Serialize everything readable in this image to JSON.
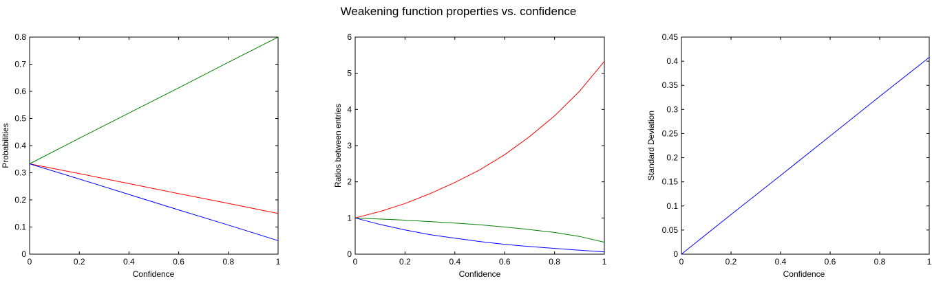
{
  "figure": {
    "title": "Weakening function properties vs. confidence"
  },
  "chart_data": [
    {
      "type": "line",
      "xlabel": "Confidence",
      "ylabel": "Probabilities",
      "xlim": [
        0,
        1
      ],
      "ylim": [
        0,
        0.8
      ],
      "xticks": [
        "0",
        "0.2",
        "0.4",
        "0.6",
        "0.8",
        "1"
      ],
      "yticks": [
        "0",
        "0.1",
        "0.2",
        "0.3",
        "0.4",
        "0.5",
        "0.6",
        "0.7",
        "0.8"
      ],
      "grid": false,
      "series": [
        {
          "color": "#008000",
          "x": [
            0,
            0.2,
            0.4,
            0.6,
            0.8,
            1
          ],
          "y": [
            0.333,
            0.427,
            0.52,
            0.613,
            0.707,
            0.8
          ]
        },
        {
          "color": "#ff0000",
          "x": [
            0,
            0.2,
            0.4,
            0.6,
            0.8,
            1
          ],
          "y": [
            0.333,
            0.297,
            0.26,
            0.223,
            0.187,
            0.15
          ]
        },
        {
          "color": "#0000ff",
          "x": [
            0,
            0.2,
            0.4,
            0.6,
            0.8,
            1
          ],
          "y": [
            0.333,
            0.277,
            0.22,
            0.163,
            0.107,
            0.05
          ]
        }
      ]
    },
    {
      "type": "line",
      "xlabel": "Confidence",
      "ylabel": "Ratios between entries",
      "xlim": [
        0,
        1
      ],
      "ylim": [
        0,
        6
      ],
      "xticks": [
        "0",
        "0.2",
        "0.4",
        "0.6",
        "0.8",
        "1"
      ],
      "yticks": [
        "0",
        "1",
        "2",
        "3",
        "4",
        "5",
        "6"
      ],
      "grid": false,
      "series": [
        {
          "color": "#ff0000",
          "x": [
            0,
            0.1,
            0.2,
            0.3,
            0.4,
            0.5,
            0.6,
            0.7,
            0.8,
            0.9,
            1
          ],
          "y": [
            1.0,
            1.18,
            1.4,
            1.67,
            1.98,
            2.33,
            2.75,
            3.25,
            3.82,
            4.5,
            5.33
          ]
        },
        {
          "color": "#008000",
          "x": [
            0,
            0.1,
            0.2,
            0.3,
            0.4,
            0.5,
            0.6,
            0.7,
            0.8,
            0.9,
            1
          ],
          "y": [
            1.0,
            0.97,
            0.94,
            0.9,
            0.86,
            0.81,
            0.75,
            0.68,
            0.6,
            0.49,
            0.33
          ]
        },
        {
          "color": "#0000ff",
          "x": [
            0,
            0.1,
            0.2,
            0.3,
            0.4,
            0.5,
            0.6,
            0.7,
            0.8,
            0.9,
            1
          ],
          "y": [
            1.0,
            0.82,
            0.67,
            0.54,
            0.44,
            0.35,
            0.27,
            0.21,
            0.16,
            0.11,
            0.06
          ]
        }
      ]
    },
    {
      "type": "line",
      "xlabel": "Confidence",
      "ylabel": "Standard Deviation",
      "xlim": [
        0,
        1
      ],
      "ylim": [
        0,
        0.45
      ],
      "xticks": [
        "0",
        "0.2",
        "0.4",
        "0.6",
        "0.8",
        "1"
      ],
      "yticks": [
        "0",
        "0.05",
        "0.1",
        "0.15",
        "0.2",
        "0.25",
        "0.3",
        "0.35",
        "0.4",
        "0.45"
      ],
      "grid": false,
      "series": [
        {
          "color": "#0000ff",
          "x": [
            0,
            0.2,
            0.4,
            0.6,
            0.8,
            1
          ],
          "y": [
            0,
            0.082,
            0.163,
            0.245,
            0.327,
            0.408
          ]
        }
      ]
    }
  ]
}
